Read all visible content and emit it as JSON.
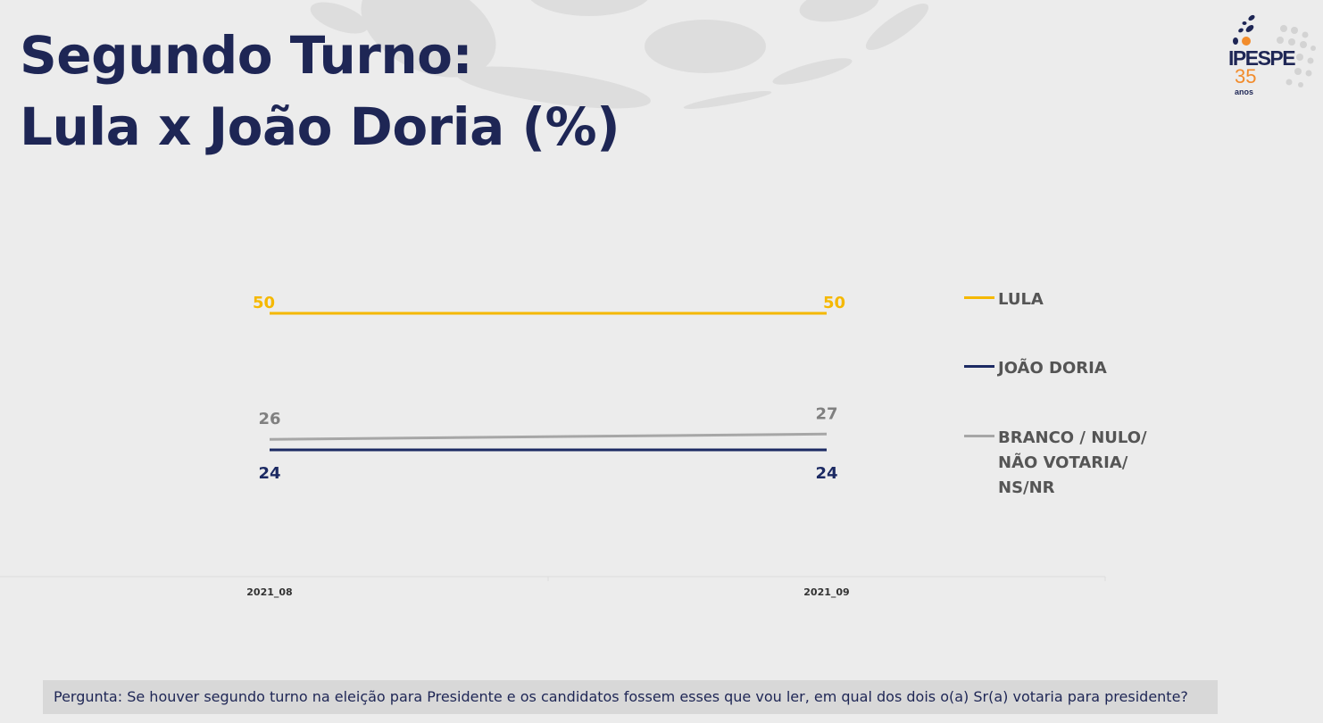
{
  "slide": {
    "title_line1": "Segundo Turno:",
    "title_line2": "Lula x João Doria (%)",
    "question": "Pergunta:  Se houver segundo turno na eleição para Presidente e os candidatos fossem esses que vou ler, em qual dos dois o(a) Sr(a) votaria para presidente?"
  },
  "logo": {
    "name": "IPESPE",
    "years": "35",
    "anos": "anos",
    "icon": "dotted-globe-icon"
  },
  "chart_data": {
    "type": "line",
    "x": [
      "2021_08",
      "2021_09"
    ],
    "series": [
      {
        "name": "LULA",
        "values": [
          50,
          50
        ],
        "color": "#f5b800"
      },
      {
        "name": "JOÃO DORIA",
        "values": [
          24,
          24
        ],
        "color": "#1c2a63"
      },
      {
        "name": "BRANCO / NULO/\nNÃO VOTARIA/\nNS/NR",
        "values": [
          26,
          27
        ],
        "color": "#a6a6a6"
      }
    ],
    "title": "",
    "xlabel": "",
    "ylabel": "",
    "grid": false,
    "legend": "right",
    "label_colors": {
      "LULA": "#f5b800",
      "JOÃO DORIA": "#1c2a63",
      "BRANCO": "#808080"
    }
  }
}
